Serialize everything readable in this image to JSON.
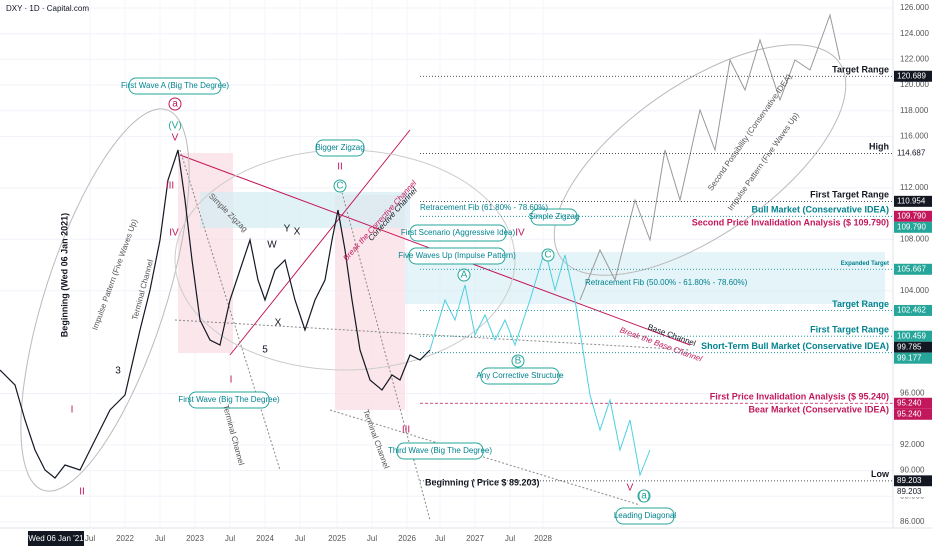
{
  "header": {
    "symbol": "DXY · 1D · Capital.com"
  },
  "price_axis": {
    "ylim": [
      86,
      126
    ],
    "ticks": [
      {
        "value": 126,
        "label": "126.000"
      },
      {
        "value": 124,
        "label": "124.000"
      },
      {
        "value": 122,
        "label": "122.000"
      },
      {
        "value": 120,
        "label": "120.000"
      },
      {
        "value": 118,
        "label": "118.000"
      },
      {
        "value": 116,
        "label": "116.000"
      },
      {
        "value": 112,
        "label": "112.000"
      },
      {
        "value": 108,
        "label": "108.000"
      },
      {
        "value": 104,
        "label": "104.000"
      },
      {
        "value": 96,
        "label": "96.000"
      },
      {
        "value": 92,
        "label": "92.000"
      },
      {
        "value": 90,
        "label": "90.000"
      },
      {
        "value": 88,
        "label": "88.000"
      },
      {
        "value": 86,
        "label": "86.000"
      }
    ],
    "tags": [
      {
        "value": 120.689,
        "label": "120.689",
        "color": "#131722"
      },
      {
        "value": 114.687,
        "label": "114.687",
        "color": "#ffffff"
      },
      {
        "value": 110.954,
        "label": "110.954",
        "color": "#131722"
      },
      {
        "value": 109.79,
        "label": "109.790",
        "color": "#c2185b"
      },
      {
        "value": 109.79,
        "label": "109.790",
        "color": "#26a69a"
      },
      {
        "value": 105.667,
        "label": "105.667",
        "color": "#26a69a"
      },
      {
        "value": 102.462,
        "label": "102.462",
        "color": "#26a69a"
      },
      {
        "value": 100.459,
        "label": "100.459",
        "color": "#26a69a"
      },
      {
        "value": 99.785,
        "label": "99.785",
        "color": "#131722"
      },
      {
        "value": 99.177,
        "label": "99.177",
        "color": "#26a69a"
      },
      {
        "value": 95.24,
        "label": "95.240",
        "color": "#c2185b"
      },
      {
        "value": 95.24,
        "label": "95.240",
        "color": "#c2185b"
      },
      {
        "value": 89.203,
        "label": "89.203",
        "color": "#131722"
      },
      {
        "value": 89.203,
        "label": "89.203",
        "color": "#ffffff"
      }
    ]
  },
  "levels": [
    {
      "value": 120.689,
      "label": "Target Range",
      "color": "#131722"
    },
    {
      "value": 114.687,
      "label": "High",
      "color": "#131722"
    },
    {
      "value": 110.954,
      "label": "First Target Range",
      "color": "#131722"
    },
    {
      "value": 109.79,
      "label": "Bull Market (Conservative IDEA)",
      "color": "#00838f"
    },
    {
      "value": 109.79,
      "label": "Second Price Invalidation Analysis ($ 109.790)",
      "color": "#c2185b"
    },
    {
      "value": 105.667,
      "label": "Expanded Target",
      "color": "#00838f"
    },
    {
      "value": 102.462,
      "label": "Target Range",
      "color": "#00838f"
    },
    {
      "value": 100.459,
      "label": "First Target Range",
      "color": "#00838f"
    },
    {
      "value": 99.177,
      "label": "Short-Term Bull Market (Conservative IDEA)",
      "color": "#00838f"
    },
    {
      "value": 95.24,
      "label": "First Price Invalidation Analysis ($ 95.240)",
      "color": "#c2185b"
    },
    {
      "value": 95.24,
      "label": "Bear Market (Conservative IDEA)",
      "color": "#c2185b"
    },
    {
      "value": 89.203,
      "label": "Low",
      "color": "#131722"
    }
  ],
  "time_axis": {
    "current": "Wed 06 Jan '21",
    "labels": [
      "Jul",
      "2022",
      "Jul",
      "2023",
      "Jul",
      "2024",
      "Jul",
      "2025",
      "Jul",
      "2026",
      "Jul",
      "2027",
      "Jul",
      "2028"
    ]
  },
  "annotations": {
    "first_wave_a": "First Wave A (Big The Degree)",
    "bigger_zigzag": "Bigger Zigzag",
    "first_scenario": "First Scenario (Aggressive Idea)",
    "simple_zigzag_box": "Simple Zigzag",
    "five_waves_up": "Five Waves Up (Impulse Pattern)",
    "first_wave": "First Wave (Big The Degree)",
    "any_corrective": "Any Corrective Structure",
    "third_wave": "Third Wave (Big The Degree)",
    "leading_diagonal": "Leading Diagonal",
    "fib_61": "Retracement Fib (61.80% - 78.60%)",
    "fib_50": "Retracement Fib (50.00% - 61.80% - 78.60%)",
    "beginning_price": "Beginning ( Price $ 89.203)",
    "beginning_date": "Beginning (Wed 06 Jan 2021)",
    "base_channel": "Base Channel",
    "break_base": "Break the Base Channel",
    "break_corrective": "Break the Corrective Channel",
    "corrective_channel": "Corrective Channel",
    "terminal_channel": "Terminal Channel",
    "terminal_channel_2": "Terminal Channel",
    "terminal_channel_3": "Terminal Channel",
    "simple_zigzag": "Simple Zigzag",
    "impulse_pattern": "Impulse Pattern (Five Waves Up)",
    "impulse_pattern_2": "Impulse Pattern (Five Waves Up)",
    "second_possibility": "Second Possibility (Conservative IDEA)"
  },
  "waves": {
    "a_big": "a",
    "V_big": "(V)",
    "v": "V",
    "II_top": "II",
    "IV_top": "IV",
    "A_right": "A",
    "C_right": "C",
    "I_left": "I",
    "II_left": "II",
    "III": "III",
    "IV": "IV",
    "I_mid": "I",
    "III_low": "III",
    "V_low": "V",
    "a_low": "(a)",
    "w": "W",
    "x": "X",
    "y": "Y",
    "x2": "X",
    "B_low": "B",
    "C_mid": "C",
    "five": "5",
    "three": "3"
  }
}
